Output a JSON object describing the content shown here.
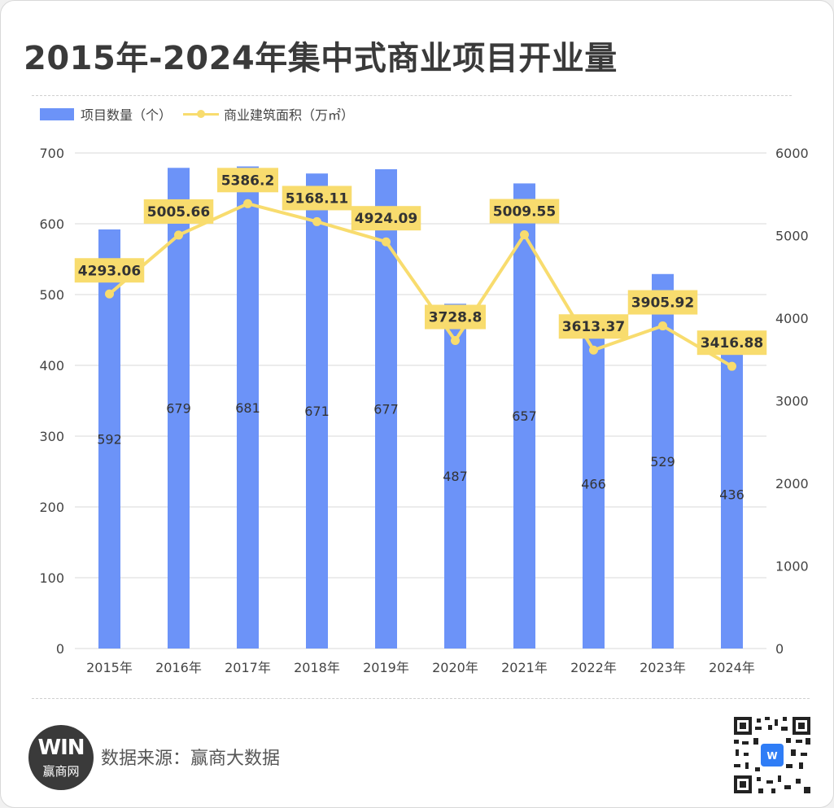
{
  "title": "2015年-2024年集中式商业项目开业量",
  "legend": {
    "bar_label": "项目数量（个）",
    "line_label": "商业建筑面积（万㎡）"
  },
  "footer": {
    "source": "数据来源：赢商大数据",
    "logo_mark": "WIN",
    "logo_text": "赢商网"
  },
  "colors": {
    "bar": "#6c93f8",
    "line": "#f8dc6e",
    "label_bg": "#f8dc6e",
    "grid": "#d9d9d9",
    "text": "#444444"
  },
  "chart_data": {
    "type": "bar",
    "categories": [
      "2015年",
      "2016年",
      "2017年",
      "2018年",
      "2019年",
      "2020年",
      "2021年",
      "2022年",
      "2023年",
      "2024年"
    ],
    "series": [
      {
        "name": "项目数量（个）",
        "type": "bar",
        "axis": "left",
        "values": [
          592,
          679,
          681,
          671,
          677,
          487,
          657,
          466,
          529,
          436
        ],
        "labels": [
          "592",
          "679",
          "681",
          "671",
          "677",
          "487",
          "657",
          "466",
          "529",
          "436"
        ]
      },
      {
        "name": "商业建筑面积（万㎡）",
        "type": "line",
        "axis": "right",
        "values": [
          4293.06,
          5005.66,
          5386.2,
          5168.11,
          4924.09,
          3728.8,
          5009.55,
          3613.37,
          3905.92,
          3416.88
        ],
        "labels": [
          "4293.06",
          "5005.66",
          "5386.2",
          "5168.11",
          "4924.09",
          "3728.8",
          "5009.55",
          "3613.37",
          "3905.92",
          "3416.88"
        ]
      }
    ],
    "y_left": {
      "lim": [
        0,
        700
      ],
      "ticks": [
        0,
        100,
        200,
        300,
        400,
        500,
        600,
        700
      ]
    },
    "y_right": {
      "lim": [
        0,
        6000
      ],
      "ticks": [
        0,
        1000,
        2000,
        3000,
        4000,
        5000,
        6000
      ]
    },
    "grid": true,
    "legend_position": "top-left"
  }
}
